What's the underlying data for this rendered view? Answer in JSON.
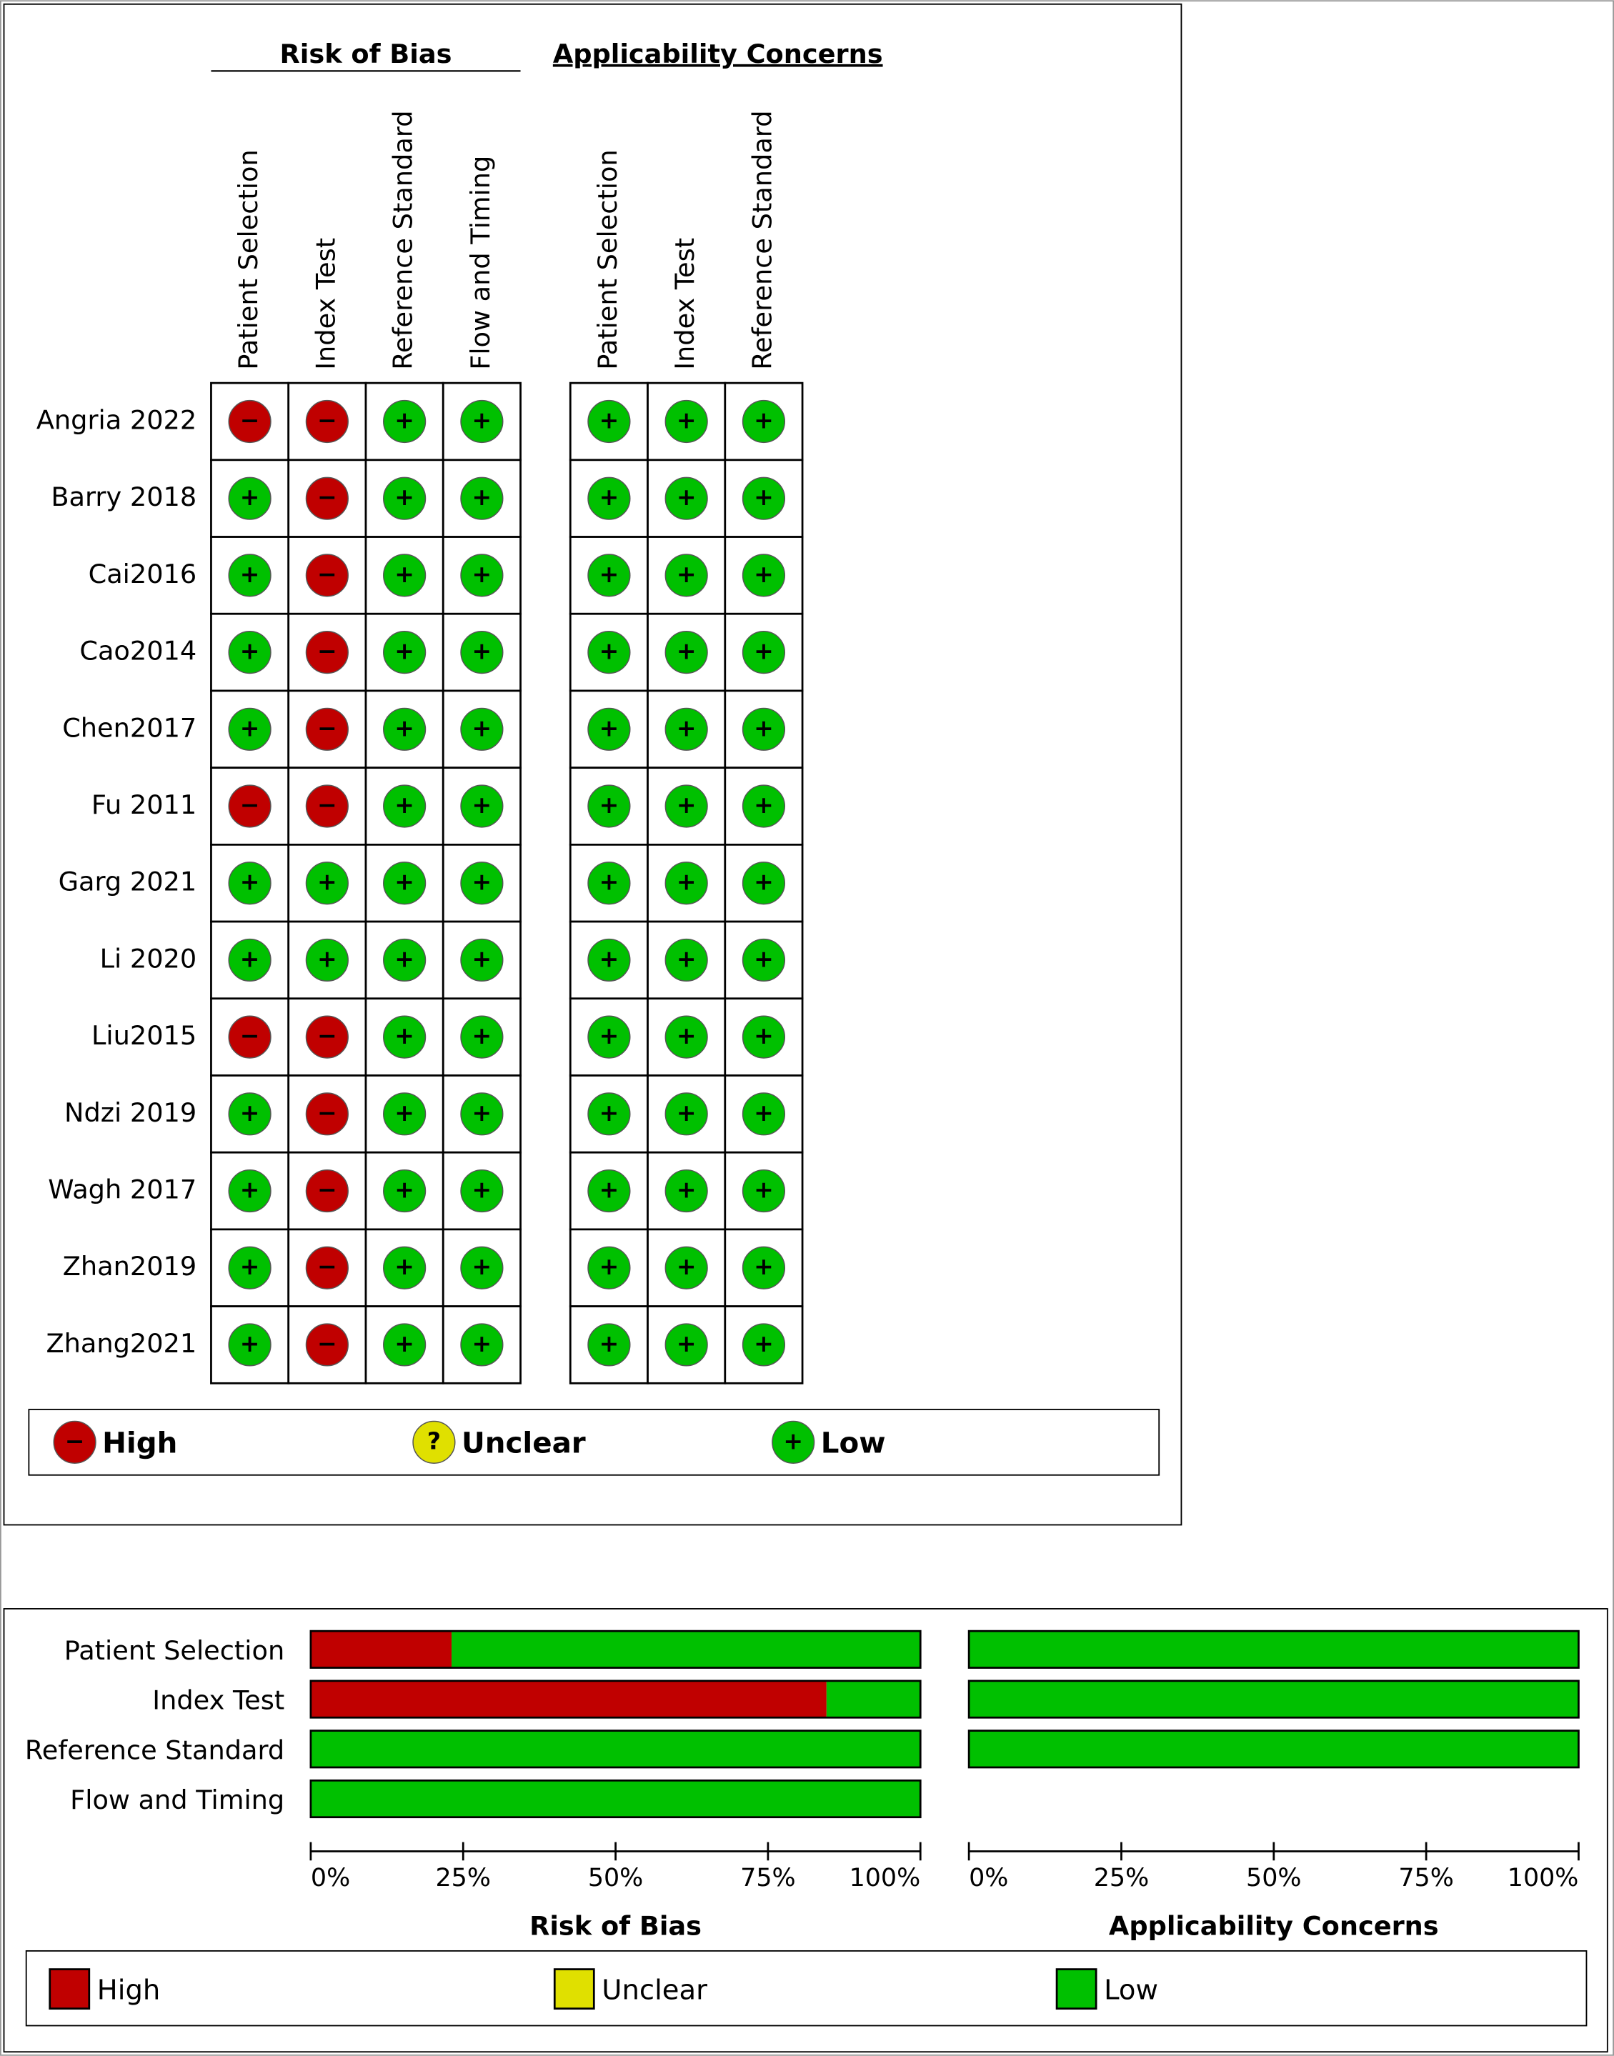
{
  "chart_data": [
    {
      "type": "matrix",
      "rows": [
        "Angria 2022",
        "Barry 2018",
        "Cai2016",
        "Cao2014",
        "Chen2017",
        "Fu 2011",
        "Garg 2021",
        "Li 2020",
        "Liu2015",
        "Ndzi 2019",
        "Wagh 2017",
        "Zhan2019",
        "Zhang2021"
      ],
      "groups": [
        {
          "name": "Risk of Bias",
          "columns": [
            "Patient Selection",
            "Index Test",
            "Reference Standard",
            "Flow and Timing"
          ],
          "values": [
            [
              "−",
              "−",
              "+",
              "+"
            ],
            [
              "+",
              "−",
              "+",
              "+"
            ],
            [
              "+",
              "−",
              "+",
              "+"
            ],
            [
              "+",
              "−",
              "+",
              "+"
            ],
            [
              "+",
              "−",
              "+",
              "+"
            ],
            [
              "−",
              "−",
              "+",
              "+"
            ],
            [
              "+",
              "+",
              "+",
              "+"
            ],
            [
              "+",
              "+",
              "+",
              "+"
            ],
            [
              "−",
              "−",
              "+",
              "+"
            ],
            [
              "+",
              "−",
              "+",
              "+"
            ],
            [
              "+",
              "−",
              "+",
              "+"
            ],
            [
              "+",
              "−",
              "+",
              "+"
            ],
            [
              "+",
              "−",
              "+",
              "+"
            ]
          ]
        },
        {
          "name": "Applicability Concerns",
          "columns": [
            "Patient Selection",
            "Index Test",
            "Reference Standard"
          ],
          "values": [
            [
              "+",
              "+",
              "+"
            ],
            [
              "+",
              "+",
              "+"
            ],
            [
              "+",
              "+",
              "+"
            ],
            [
              "+",
              "+",
              "+"
            ],
            [
              "+",
              "+",
              "+"
            ],
            [
              "+",
              "+",
              "+"
            ],
            [
              "+",
              "+",
              "+"
            ],
            [
              "+",
              "+",
              "+"
            ],
            [
              "+",
              "+",
              "+"
            ],
            [
              "+",
              "+",
              "+"
            ],
            [
              "+",
              "+",
              "+"
            ],
            [
              "+",
              "+",
              "+"
            ],
            [
              "+",
              "+",
              "+"
            ]
          ]
        }
      ],
      "legend": [
        {
          "symbol": "−",
          "label": "High",
          "color": "#c00000"
        },
        {
          "symbol": "?",
          "label": "Unclear",
          "color": "#e0e000"
        },
        {
          "symbol": "+",
          "label": "Low",
          "color": "#00c000"
        }
      ]
    },
    {
      "type": "bar",
      "orientation": "horizontal",
      "stacked": true,
      "categories": [
        "Patient Selection",
        "Index Test",
        "Reference Standard",
        "Flow and Timing"
      ],
      "xlabel": "Risk of Bias",
      "xlim": [
        0,
        100
      ],
      "xticks": [
        {
          "value": 0,
          "label": "0%"
        },
        {
          "value": 25,
          "label": "25%"
        },
        {
          "value": 50,
          "label": "50%"
        },
        {
          "value": 75,
          "label": "75%"
        },
        {
          "value": 100,
          "label": "100%"
        }
      ],
      "series": [
        {
          "name": "High",
          "color": "#c00000",
          "values": [
            23.1,
            84.6,
            0,
            0
          ]
        },
        {
          "name": "Unclear",
          "color": "#e0e000",
          "values": [
            0,
            0,
            0,
            0
          ]
        },
        {
          "name": "Low",
          "color": "#00c000",
          "values": [
            76.9,
            15.4,
            100,
            100
          ]
        }
      ]
    },
    {
      "type": "bar",
      "orientation": "horizontal",
      "stacked": true,
      "xlabel": "Applicability Concerns",
      "xlim": [
        0,
        100
      ],
      "xticks": [
        {
          "value": 0,
          "label": "0%"
        },
        {
          "value": 25,
          "label": "25%"
        },
        {
          "value": 50,
          "label": "50%"
        },
        {
          "value": 75,
          "label": "75%"
        },
        {
          "value": 100,
          "label": "100%"
        }
      ],
      "series": [
        {
          "color": "#c00000",
          "values": [
            0,
            0,
            0
          ]
        },
        {
          "color": "#e0e000",
          "values": [
            0,
            0,
            0
          ]
        },
        {
          "color": "#00c000",
          "values": [
            100,
            100,
            100
          ]
        }
      ]
    }
  ]
}
